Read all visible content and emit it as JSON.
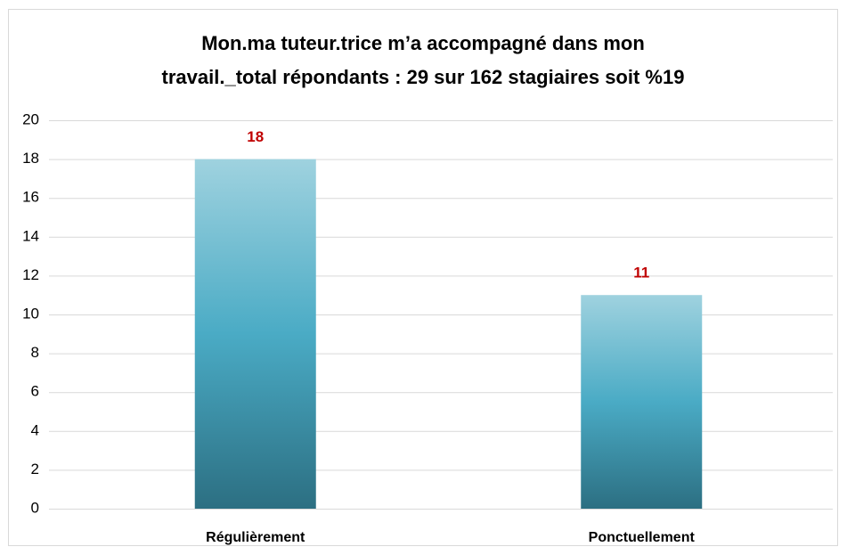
{
  "chart_data": {
    "type": "bar",
    "title": [
      "Mon.ma tuteur.trice m’a accompagné dans mon",
      "travail._total répondants : 29 sur 162 stagiaires soit %19"
    ],
    "categories": [
      "Régulièrement",
      "Ponctuellement"
    ],
    "values": [
      18,
      11
    ],
    "colors": [
      "#9fd2df",
      "#4aabc5",
      "#2c6f82"
    ],
    "label_color": "#c00000",
    "ylim": [
      0,
      20
    ],
    "yticks": [
      0,
      2,
      4,
      6,
      8,
      10,
      12,
      14,
      16,
      18,
      20
    ],
    "grid": true
  }
}
